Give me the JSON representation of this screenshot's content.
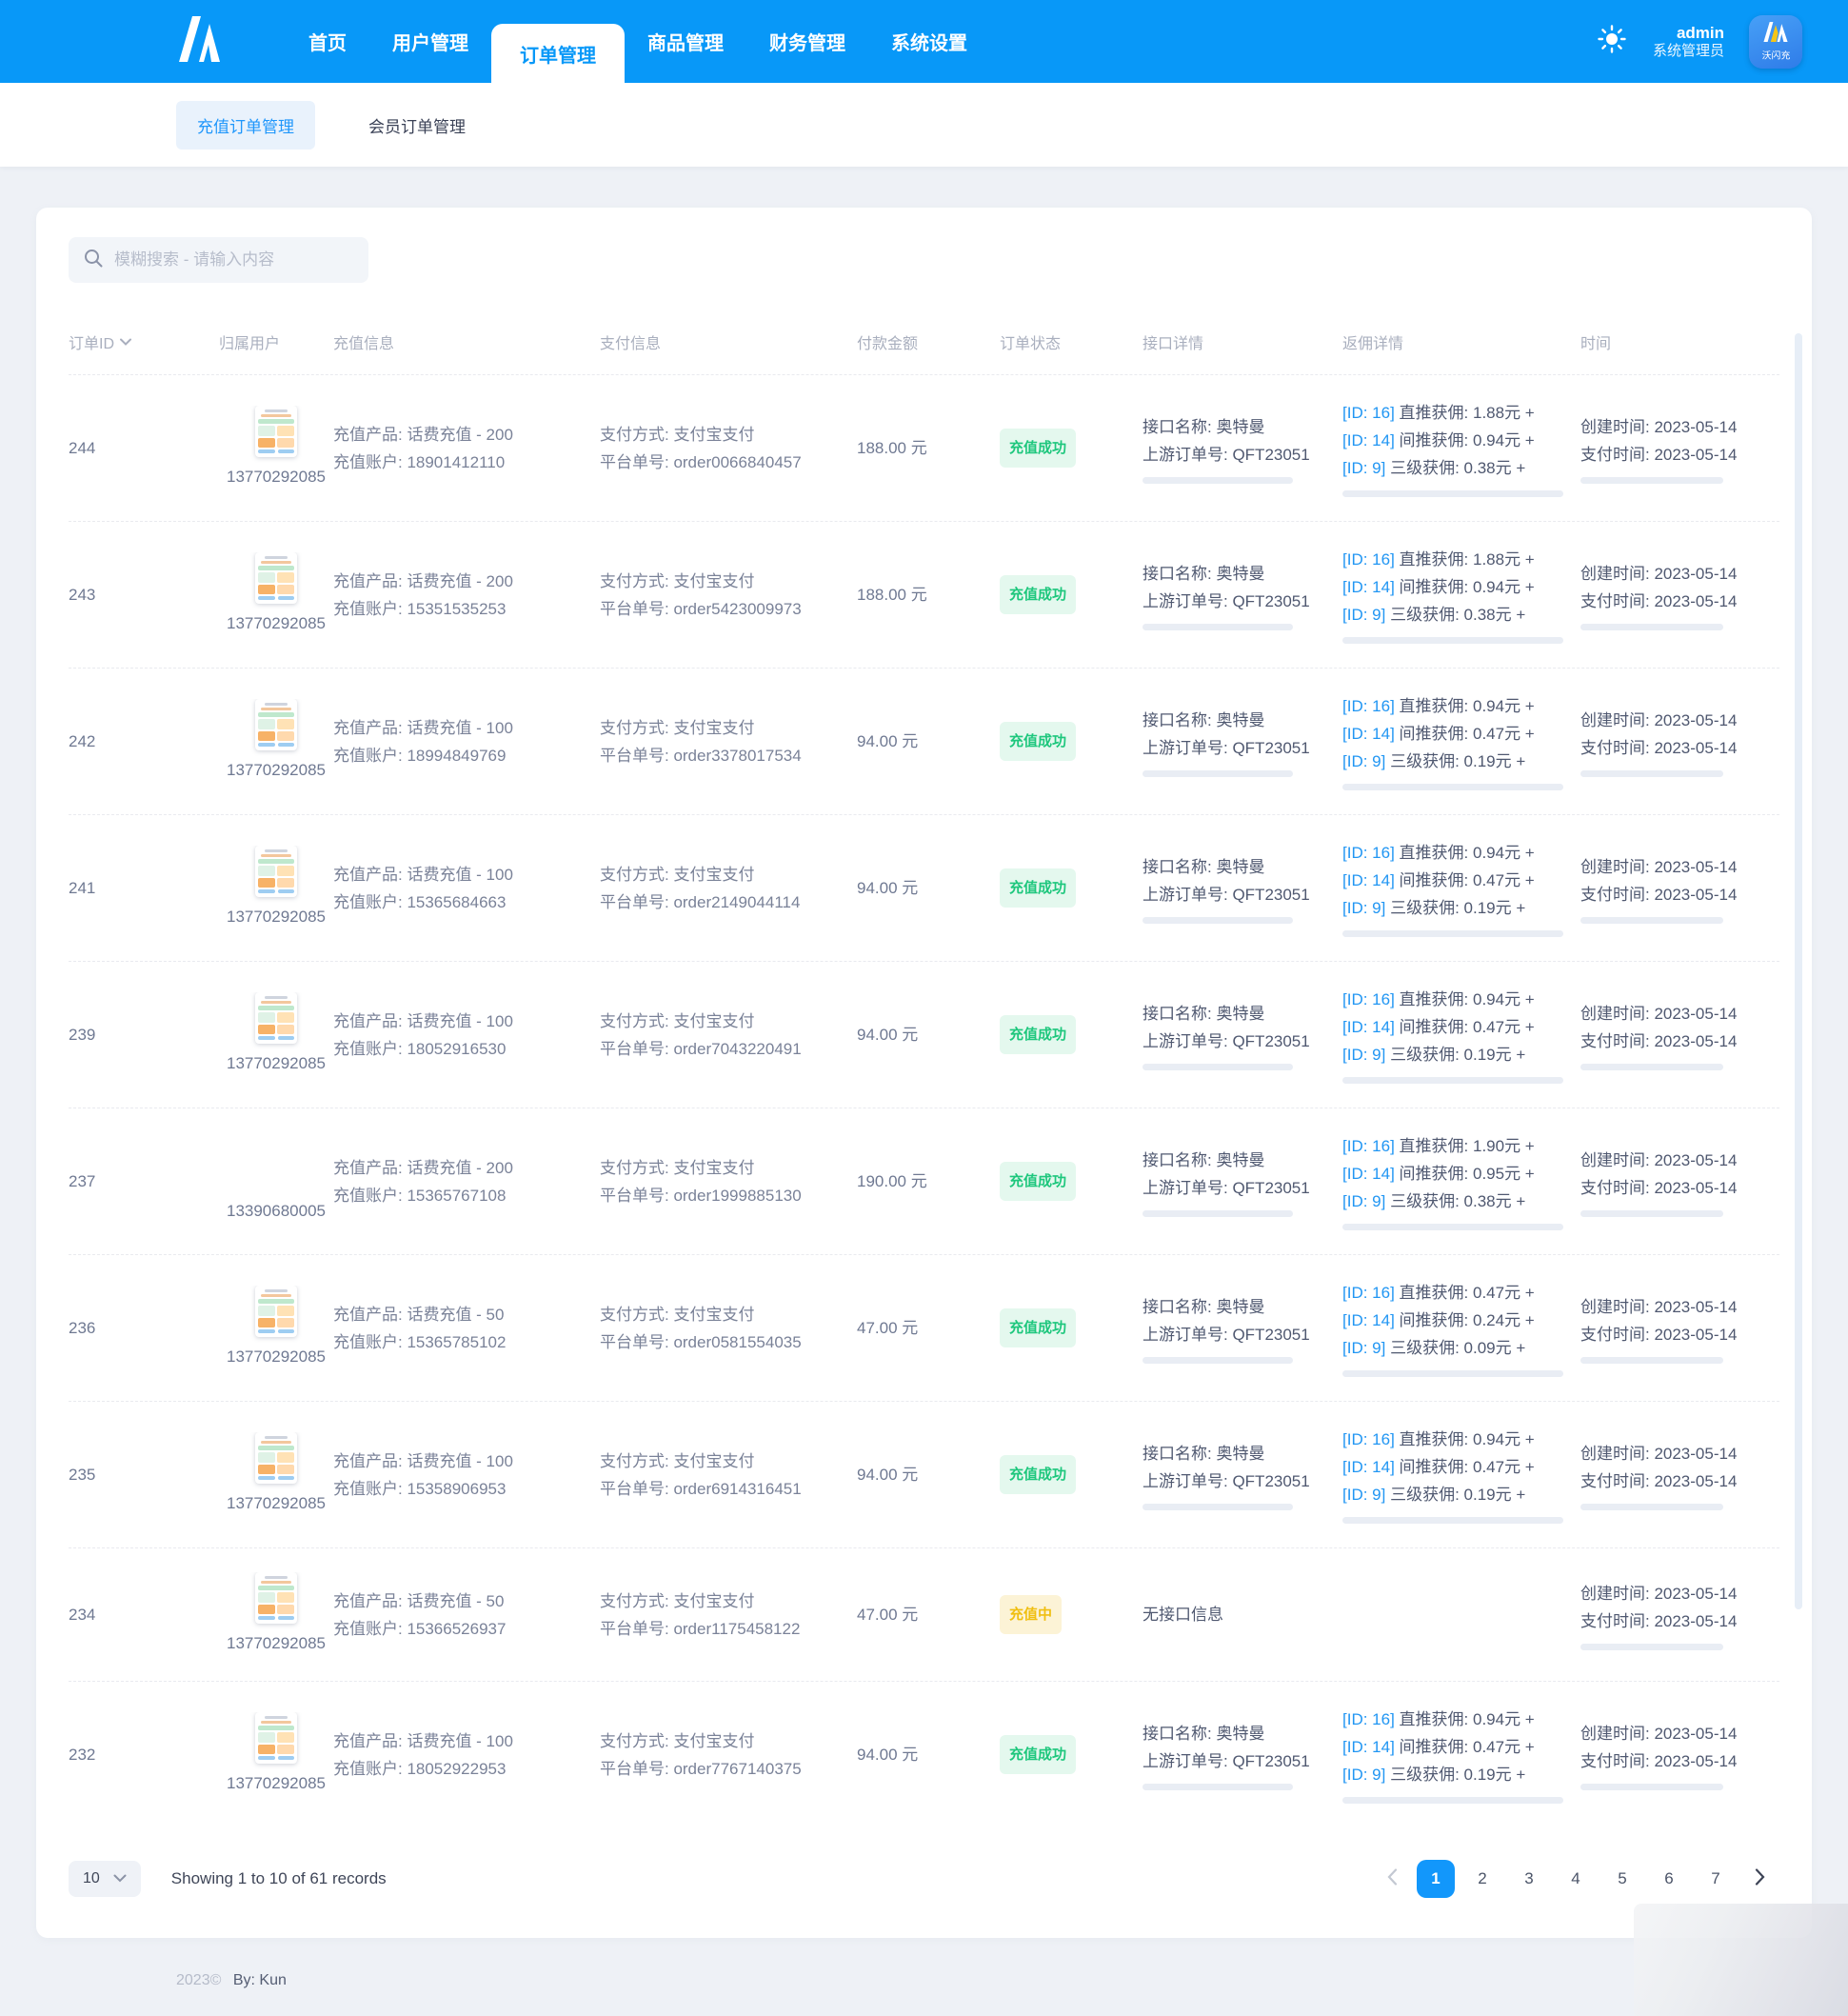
{
  "colors": {
    "primary": "#0898f8",
    "link_blue": "#2196f3",
    "success_text": "#1ec77d",
    "success_bg": "#e4f8ee",
    "pending_text": "#f0bf12",
    "pending_bg": "#fcf3d6",
    "active_page_bg": "#1297fb"
  },
  "icons": {
    "brand": "m-logo-icon",
    "theme": "sun-icon",
    "search": "magnifier-icon",
    "sort": "chevron-down-icon",
    "page_size": "chevron-down-icon",
    "prev": "chevron-left-icon",
    "next": "chevron-right-icon",
    "row_avatar_default": "product-thumbnail-image",
    "row_avatar_telecom": "china-telecom-logo"
  },
  "navbar": {
    "items": [
      "首页",
      "用户管理",
      "订单管理",
      "商品管理",
      "财务管理",
      "系统设置"
    ],
    "active_item": "订单管理",
    "user_name": "admin",
    "user_role": "系统管理员",
    "avatar_text": "沃闪充"
  },
  "subtabs": [
    "充值订单管理",
    "会员订单管理"
  ],
  "search": {
    "placeholder": "模糊搜索 - 请输入内容"
  },
  "table": {
    "headers": {
      "order_id": "订单ID",
      "user": "归属用户",
      "charge": "充值信息",
      "payment": "支付信息",
      "amount": "付款金额",
      "status": "订单状态",
      "api": "接口详情",
      "commission": "返佣详情",
      "time": "时间"
    },
    "rows": [
      {
        "id": "244",
        "phone": "13770292085",
        "avatar": "thumb",
        "charge_product": "充值产品: 话费充值 - 200",
        "charge_account": "充值账户: 18901412110",
        "pay_method": "支付方式: 支付宝支付",
        "platform_no": "平台单号: order0066840457",
        "amount": "188.00 元",
        "status": "充值成功",
        "status_type": "success",
        "api_name": "接口名称: 奥特曼",
        "api_order": "上游订单号: QFT23051",
        "has_api": true,
        "commissions": [
          {
            "id": "[ID: 16]",
            "text": "直推获佣: 1.88元 +"
          },
          {
            "id": "[ID: 14]",
            "text": "间推获佣: 0.94元 +"
          },
          {
            "id": "[ID: 9]",
            "text": "三级获佣: 0.38元 +"
          }
        ],
        "created": "创建时间: 2023-05-14",
        "paid": "支付时间: 2023-05-14"
      },
      {
        "id": "243",
        "phone": "13770292085",
        "avatar": "thumb",
        "charge_product": "充值产品: 话费充值 - 200",
        "charge_account": "充值账户: 15351535253",
        "pay_method": "支付方式: 支付宝支付",
        "platform_no": "平台单号: order5423009973",
        "amount": "188.00 元",
        "status": "充值成功",
        "status_type": "success",
        "api_name": "接口名称: 奥特曼",
        "api_order": "上游订单号: QFT23051",
        "has_api": true,
        "commissions": [
          {
            "id": "[ID: 16]",
            "text": "直推获佣: 1.88元 +"
          },
          {
            "id": "[ID: 14]",
            "text": "间推获佣: 0.94元 +"
          },
          {
            "id": "[ID: 9]",
            "text": "三级获佣: 0.38元 +"
          }
        ],
        "created": "创建时间: 2023-05-14",
        "paid": "支付时间: 2023-05-14"
      },
      {
        "id": "242",
        "phone": "13770292085",
        "avatar": "thumb",
        "charge_product": "充值产品: 话费充值 - 100",
        "charge_account": "充值账户: 18994849769",
        "pay_method": "支付方式: 支付宝支付",
        "platform_no": "平台单号: order3378017534",
        "amount": "94.00 元",
        "status": "充值成功",
        "status_type": "success",
        "api_name": "接口名称: 奥特曼",
        "api_order": "上游订单号: QFT23051",
        "has_api": true,
        "commissions": [
          {
            "id": "[ID: 16]",
            "text": "直推获佣: 0.94元 +"
          },
          {
            "id": "[ID: 14]",
            "text": "间推获佣: 0.47元 +"
          },
          {
            "id": "[ID: 9]",
            "text": "三级获佣: 0.19元 +"
          }
        ],
        "created": "创建时间: 2023-05-14",
        "paid": "支付时间: 2023-05-14"
      },
      {
        "id": "241",
        "phone": "13770292085",
        "avatar": "thumb",
        "charge_product": "充值产品: 话费充值 - 100",
        "charge_account": "充值账户: 15365684663",
        "pay_method": "支付方式: 支付宝支付",
        "platform_no": "平台单号: order2149044114",
        "amount": "94.00 元",
        "status": "充值成功",
        "status_type": "success",
        "api_name": "接口名称: 奥特曼",
        "api_order": "上游订单号: QFT23051",
        "has_api": true,
        "commissions": [
          {
            "id": "[ID: 16]",
            "text": "直推获佣: 0.94元 +"
          },
          {
            "id": "[ID: 14]",
            "text": "间推获佣: 0.47元 +"
          },
          {
            "id": "[ID: 9]",
            "text": "三级获佣: 0.19元 +"
          }
        ],
        "created": "创建时间: 2023-05-14",
        "paid": "支付时间: 2023-05-14"
      },
      {
        "id": "239",
        "phone": "13770292085",
        "avatar": "thumb",
        "charge_product": "充值产品: 话费充值 - 100",
        "charge_account": "充值账户: 18052916530",
        "pay_method": "支付方式: 支付宝支付",
        "platform_no": "平台单号: order7043220491",
        "amount": "94.00 元",
        "status": "充值成功",
        "status_type": "success",
        "api_name": "接口名称: 奥特曼",
        "api_order": "上游订单号: QFT23051",
        "has_api": true,
        "commissions": [
          {
            "id": "[ID: 16]",
            "text": "直推获佣: 0.94元 +"
          },
          {
            "id": "[ID: 14]",
            "text": "间推获佣: 0.47元 +"
          },
          {
            "id": "[ID: 9]",
            "text": "三级获佣: 0.19元 +"
          }
        ],
        "created": "创建时间: 2023-05-14",
        "paid": "支付时间: 2023-05-14"
      },
      {
        "id": "237",
        "phone": "13390680005",
        "avatar": "telecom",
        "charge_product": "充值产品: 话费充值 - 200",
        "charge_account": "充值账户: 15365767108",
        "pay_method": "支付方式: 支付宝支付",
        "platform_no": "平台单号: order1999885130",
        "amount": "190.00 元",
        "status": "充值成功",
        "status_type": "success",
        "api_name": "接口名称: 奥特曼",
        "api_order": "上游订单号: QFT23051",
        "has_api": true,
        "commissions": [
          {
            "id": "[ID: 16]",
            "text": "直推获佣: 1.90元 +"
          },
          {
            "id": "[ID: 14]",
            "text": "间推获佣: 0.95元 +"
          },
          {
            "id": "[ID: 9]",
            "text": "三级获佣: 0.38元 +"
          }
        ],
        "created": "创建时间: 2023-05-14",
        "paid": "支付时间: 2023-05-14"
      },
      {
        "id": "236",
        "phone": "13770292085",
        "avatar": "thumb",
        "charge_product": "充值产品: 话费充值 - 50",
        "charge_account": "充值账户: 15365785102",
        "pay_method": "支付方式: 支付宝支付",
        "platform_no": "平台单号: order0581554035",
        "amount": "47.00 元",
        "status": "充值成功",
        "status_type": "success",
        "api_name": "接口名称: 奥特曼",
        "api_order": "上游订单号: QFT23051",
        "has_api": true,
        "commissions": [
          {
            "id": "[ID: 16]",
            "text": "直推获佣: 0.47元 +"
          },
          {
            "id": "[ID: 14]",
            "text": "间推获佣: 0.24元 +"
          },
          {
            "id": "[ID: 9]",
            "text": "三级获佣: 0.09元 +"
          }
        ],
        "created": "创建时间: 2023-05-14",
        "paid": "支付时间: 2023-05-14"
      },
      {
        "id": "235",
        "phone": "13770292085",
        "avatar": "thumb",
        "charge_product": "充值产品: 话费充值 - 100",
        "charge_account": "充值账户: 15358906953",
        "pay_method": "支付方式: 支付宝支付",
        "platform_no": "平台单号: order6914316451",
        "amount": "94.00 元",
        "status": "充值成功",
        "status_type": "success",
        "api_name": "接口名称: 奥特曼",
        "api_order": "上游订单号: QFT23051",
        "has_api": true,
        "commissions": [
          {
            "id": "[ID: 16]",
            "text": "直推获佣: 0.94元 +"
          },
          {
            "id": "[ID: 14]",
            "text": "间推获佣: 0.47元 +"
          },
          {
            "id": "[ID: 9]",
            "text": "三级获佣: 0.19元 +"
          }
        ],
        "created": "创建时间: 2023-05-14",
        "paid": "支付时间: 2023-05-14"
      },
      {
        "id": "234",
        "phone": "13770292085",
        "avatar": "thumb",
        "charge_product": "充值产品: 话费充值 - 50",
        "charge_account": "充值账户: 15366526937",
        "pay_method": "支付方式: 支付宝支付",
        "platform_no": "平台单号: order1175458122",
        "amount": "47.00 元",
        "status": "充值中",
        "status_type": "pending",
        "api_name": "无接口信息",
        "api_order": "",
        "has_api": false,
        "commissions": [],
        "created": "创建时间: 2023-05-14",
        "paid": "支付时间: 2023-05-14"
      },
      {
        "id": "232",
        "phone": "13770292085",
        "avatar": "thumb",
        "charge_product": "充值产品: 话费充值 - 100",
        "charge_account": "充值账户: 18052922953",
        "pay_method": "支付方式: 支付宝支付",
        "platform_no": "平台单号: order7767140375",
        "amount": "94.00 元",
        "status": "充值成功",
        "status_type": "success",
        "api_name": "接口名称: 奥特曼",
        "api_order": "上游订单号: QFT23051",
        "has_api": true,
        "commissions": [
          {
            "id": "[ID: 16]",
            "text": "直推获佣: 0.94元 +"
          },
          {
            "id": "[ID: 14]",
            "text": "间推获佣: 0.47元 +"
          },
          {
            "id": "[ID: 9]",
            "text": "三级获佣: 0.19元 +"
          }
        ],
        "created": "创建时间: 2023-05-14",
        "paid": "支付时间: 2023-05-14"
      }
    ]
  },
  "pagination": {
    "page_size": "10",
    "summary": "Showing 1 to 10 of 61 records",
    "pages": [
      "1",
      "2",
      "3",
      "4",
      "5",
      "6",
      "7"
    ],
    "active_page": "1"
  },
  "footer": {
    "year": "2023©",
    "by": "By: Kun"
  }
}
